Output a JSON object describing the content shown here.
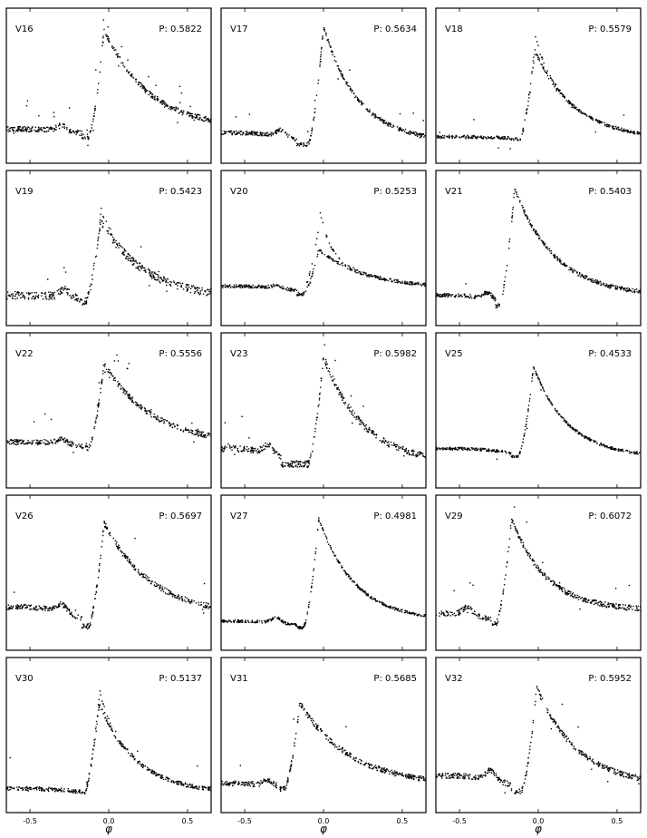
{
  "figure": {
    "xlabel": "φ",
    "xticks": [
      "-0.5",
      "0.0",
      "0.5"
    ]
  },
  "chart_data": [
    {
      "type": "scatter",
      "name": "V16",
      "period_label": "P: 0.5822",
      "xlim": [
        -0.65,
        0.65
      ],
      "shape": {
        "base_pre": 0.18,
        "bump_x": -0.3,
        "bump_h": 0.04,
        "min_x": -0.17,
        "min_v": 0.12,
        "peak_x": -0.03,
        "peak_v": 0.95,
        "decay": 0.28,
        "base_post": 0.18,
        "noise": 0.02,
        "outliers": 0.06,
        "doubled": 0
      }
    },
    {
      "type": "scatter",
      "name": "V17",
      "period_label": "P: 0.5634",
      "xlim": [
        -0.65,
        0.65
      ],
      "shape": {
        "base_pre": 0.15,
        "bump_x": -0.27,
        "bump_h": 0.05,
        "min_x": -0.17,
        "min_v": 0.06,
        "peak_x": 0.0,
        "peak_v": 0.97,
        "decay": 0.22,
        "base_post": 0.08,
        "noise": 0.015,
        "outliers": 0.02,
        "doubled": 0
      }
    },
    {
      "type": "scatter",
      "name": "V18",
      "period_label": "P: 0.5579",
      "xlim": [
        -0.65,
        0.65
      ],
      "shape": {
        "base_pre": 0.12,
        "bump_x": -0.3,
        "bump_h": 0.0,
        "min_x": -0.17,
        "min_v": 0.1,
        "peak_x": -0.02,
        "peak_v": 0.78,
        "decay": 0.25,
        "base_post": 0.1,
        "noise": 0.012,
        "outliers": 0.01,
        "doubled": 0.12
      }
    },
    {
      "type": "scatter",
      "name": "V19",
      "period_label": "P: 0.5423",
      "xlim": [
        -0.65,
        0.65
      ],
      "shape": {
        "base_pre": 0.15,
        "bump_x": -0.28,
        "bump_h": 0.06,
        "min_x": -0.17,
        "min_v": 0.1,
        "peak_x": -0.05,
        "peak_v": 0.72,
        "decay": 0.28,
        "base_post": 0.12,
        "noise": 0.03,
        "outliers": 0.02,
        "doubled": 0.1
      }
    },
    {
      "type": "scatter",
      "name": "V20",
      "period_label": "P: 0.5253",
      "xlim": [
        -0.65,
        0.65
      ],
      "shape": {
        "base_pre": 0.22,
        "bump_x": -0.3,
        "bump_h": 0.02,
        "min_x": -0.17,
        "min_v": 0.16,
        "peak_x": -0.03,
        "peak_v": 0.5,
        "decay": 0.3,
        "base_post": 0.2,
        "noise": 0.012,
        "outliers": 0.0,
        "doubled": 0.35
      }
    },
    {
      "type": "scatter",
      "name": "V21",
      "period_label": "P: 0.5403",
      "xlim": [
        -0.65,
        0.65
      ],
      "shape": {
        "base_pre": 0.15,
        "bump_x": -0.32,
        "bump_h": 0.05,
        "min_x": -0.27,
        "min_v": 0.07,
        "peak_x": -0.15,
        "peak_v": 0.97,
        "decay": 0.26,
        "base_post": 0.14,
        "noise": 0.015,
        "outliers": 0.01,
        "doubled": 0
      }
    },
    {
      "type": "scatter",
      "name": "V22",
      "period_label": "P: 0.5556",
      "xlim": [
        -0.65,
        0.65
      ],
      "shape": {
        "base_pre": 0.27,
        "bump_x": -0.3,
        "bump_h": 0.04,
        "min_x": -0.17,
        "min_v": 0.22,
        "peak_x": -0.03,
        "peak_v": 0.88,
        "decay": 0.3,
        "base_post": 0.25,
        "noise": 0.02,
        "outliers": 0.06,
        "doubled": 0
      }
    },
    {
      "type": "scatter",
      "name": "V23",
      "period_label": "P: 0.5982",
      "xlim": [
        -0.65,
        0.65
      ],
      "shape": {
        "base_pre": 0.22,
        "bump_x": -0.35,
        "bump_h": 0.06,
        "min_x": -0.27,
        "min_v": 0.1,
        "peak_x": 0.0,
        "peak_v": 0.93,
        "decay": 0.25,
        "base_post": 0.1,
        "noise": 0.025,
        "outliers": 0.02,
        "doubled": 0
      }
    },
    {
      "type": "scatter",
      "name": "V25",
      "period_label": "P: 0.4533",
      "xlim": [
        -0.65,
        0.65
      ],
      "shape": {
        "base_pre": 0.22,
        "bump_x": -0.3,
        "bump_h": 0.0,
        "min_x": -0.17,
        "min_v": 0.16,
        "peak_x": -0.03,
        "peak_v": 0.85,
        "decay": 0.22,
        "base_post": 0.15,
        "noise": 0.01,
        "outliers": 0.01,
        "doubled": 0
      }
    },
    {
      "type": "scatter",
      "name": "V26",
      "period_label": "P: 0.5697",
      "xlim": [
        -0.65,
        0.65
      ],
      "shape": {
        "base_pre": 0.25,
        "bump_x": -0.3,
        "bump_h": 0.06,
        "min_x": -0.17,
        "min_v": 0.1,
        "peak_x": -0.03,
        "peak_v": 0.9,
        "decay": 0.3,
        "base_post": 0.18,
        "noise": 0.02,
        "outliers": 0.02,
        "doubled": 0
      }
    },
    {
      "type": "scatter",
      "name": "V27",
      "period_label": "P: 0.4981",
      "xlim": [
        -0.65,
        0.65
      ],
      "shape": {
        "base_pre": 0.14,
        "bump_x": -0.3,
        "bump_h": 0.04,
        "min_x": -0.17,
        "min_v": 0.09,
        "peak_x": -0.03,
        "peak_v": 0.93,
        "decay": 0.23,
        "base_post": 0.14,
        "noise": 0.01,
        "outliers": 0.0,
        "doubled": 0
      }
    },
    {
      "type": "scatter",
      "name": "V29",
      "period_label": "P: 0.6072",
      "xlim": [
        -0.65,
        0.65
      ],
      "shape": {
        "base_pre": 0.2,
        "bump_x": -0.45,
        "bump_h": 0.06,
        "min_x": -0.3,
        "min_v": 0.12,
        "peak_x": -0.17,
        "peak_v": 0.93,
        "decay": 0.22,
        "base_post": 0.22,
        "noise": 0.02,
        "outliers": 0.02,
        "doubled": 0
      }
    },
    {
      "type": "scatter",
      "name": "V30",
      "period_label": "P: 0.5137",
      "xlim": [
        -0.65,
        0.65
      ],
      "shape": {
        "base_pre": 0.1,
        "bump_x": -0.3,
        "bump_h": 0.0,
        "min_x": -0.17,
        "min_v": 0.06,
        "peak_x": -0.06,
        "peak_v": 0.75,
        "decay": 0.24,
        "base_post": 0.06,
        "noise": 0.015,
        "outliers": 0.01,
        "doubled": 0.12
      }
    },
    {
      "type": "scatter",
      "name": "V31",
      "period_label": "P: 0.5685",
      "xlim": [
        -0.65,
        0.65
      ],
      "shape": {
        "base_pre": 0.14,
        "bump_x": -0.35,
        "bump_h": 0.04,
        "min_x": -0.28,
        "min_v": 0.1,
        "peak_x": -0.15,
        "peak_v": 0.76,
        "decay": 0.32,
        "base_post": 0.12,
        "noise": 0.02,
        "outliers": 0.01,
        "doubled": 0
      }
    },
    {
      "type": "scatter",
      "name": "V32",
      "period_label": "P: 0.5952",
      "xlim": [
        -0.65,
        0.65
      ],
      "shape": {
        "base_pre": 0.2,
        "bump_x": -0.3,
        "bump_h": 0.07,
        "min_x": -0.17,
        "min_v": 0.08,
        "peak_x": -0.01,
        "peak_v": 0.88,
        "decay": 0.26,
        "base_post": 0.12,
        "noise": 0.02,
        "outliers": 0.02,
        "doubled": 0
      }
    }
  ]
}
